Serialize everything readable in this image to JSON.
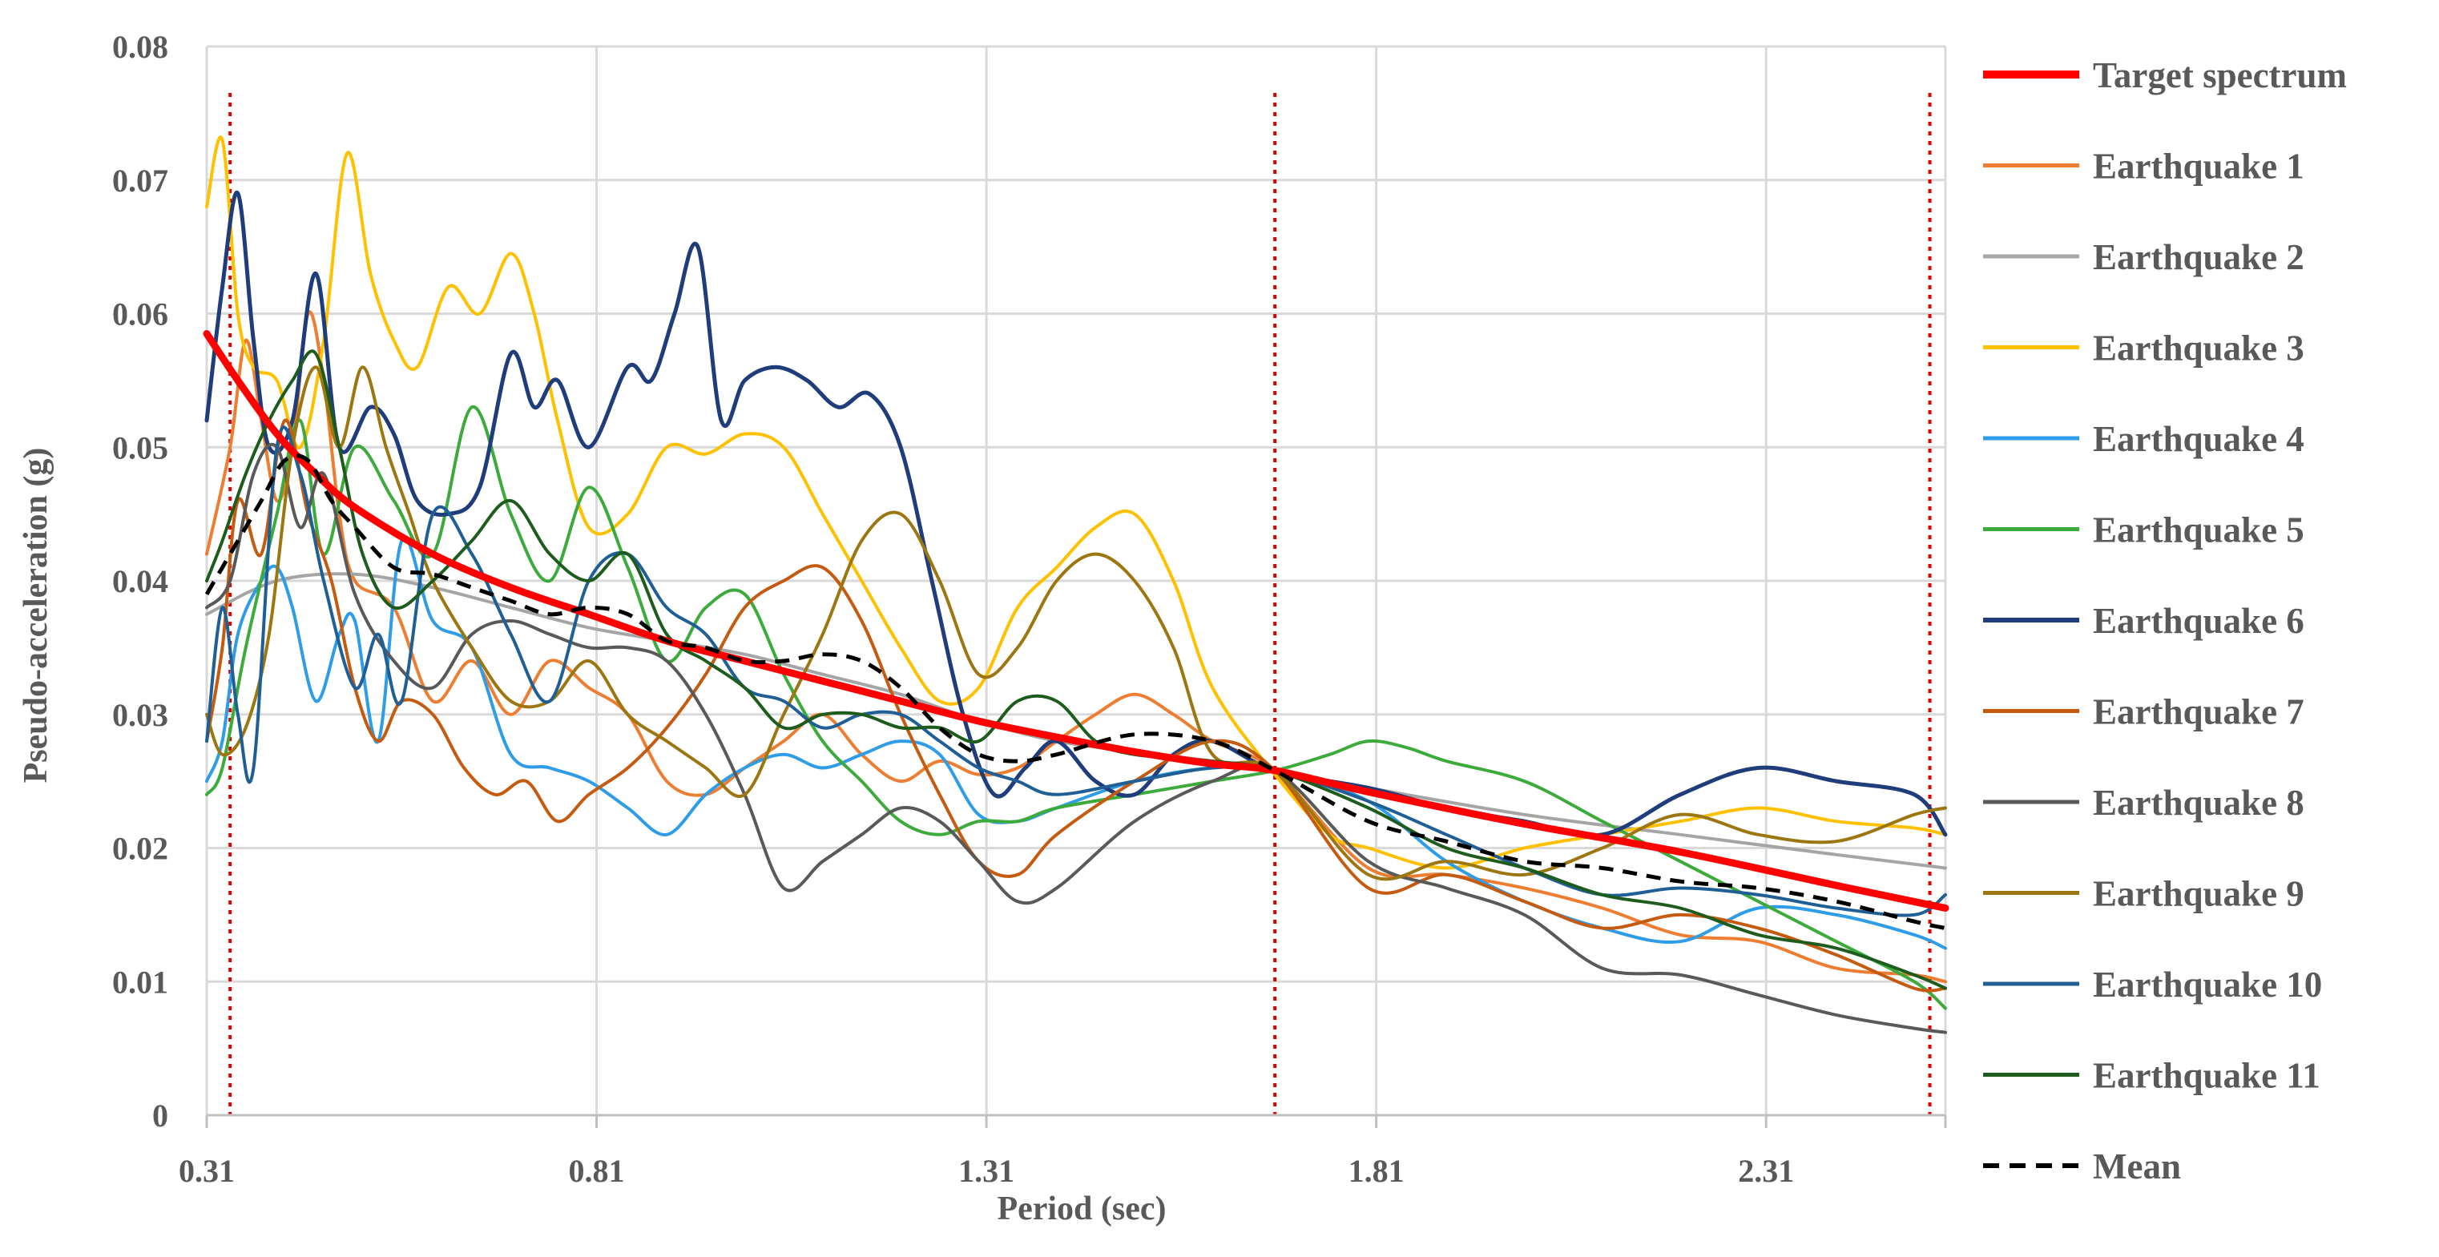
{
  "chart_data": {
    "type": "line",
    "title": "",
    "xlabel": "Period (sec)",
    "ylabel": "Pseudo-acceleration (g)",
    "xlim": [
      0.31,
      2.54
    ],
    "ylim": [
      0,
      0.08
    ],
    "xticks": [
      0.31,
      0.81,
      1.31,
      1.81,
      2.31
    ],
    "xtick_labels": [
      "0.31",
      "0.81",
      "1.31",
      "1.81",
      "2.31"
    ],
    "yticks": [
      0,
      0.01,
      0.02,
      0.03,
      0.04,
      0.05,
      0.06,
      0.07,
      0.08
    ],
    "ytick_labels": [
      "0",
      "0.01",
      "0.02",
      "0.03",
      "0.04",
      "0.05",
      "0.06",
      "0.07",
      "0.08"
    ],
    "grid": true,
    "legend_position": "right",
    "vertical_markers": [
      {
        "x": 0.34,
        "color": "#e00000",
        "style": "dotted"
      },
      {
        "x": 1.68,
        "color": "#e00000",
        "style": "dotted"
      },
      {
        "x": 2.52,
        "color": "#e00000",
        "style": "dotted"
      }
    ],
    "series": [
      {
        "name": "Target spectrum",
        "color": "#ff0000",
        "width": 9,
        "dash": "",
        "x": [
          0.31,
          0.35,
          0.4,
          0.45,
          0.5,
          0.6,
          0.7,
          0.8,
          0.9,
          1.0,
          1.1,
          1.2,
          1.3,
          1.4,
          1.5,
          1.6,
          1.68,
          1.8,
          2.0,
          2.2,
          2.4,
          2.54
        ],
        "y": [
          0.0585,
          0.055,
          0.051,
          0.048,
          0.0455,
          0.042,
          0.0395,
          0.0375,
          0.0355,
          0.034,
          0.0325,
          0.031,
          0.0295,
          0.0283,
          0.0272,
          0.0263,
          0.0258,
          0.0242,
          0.0218,
          0.0197,
          0.0172,
          0.0155
        ]
      },
      {
        "name": "Earthquake 1",
        "color": "#ed7d31",
        "width": 4,
        "dash": "",
        "x": [
          0.31,
          0.34,
          0.36,
          0.38,
          0.4,
          0.42,
          0.44,
          0.46,
          0.48,
          0.5,
          0.55,
          0.6,
          0.65,
          0.7,
          0.75,
          0.8,
          0.85,
          0.9,
          0.95,
          1.0,
          1.05,
          1.1,
          1.15,
          1.2,
          1.25,
          1.3,
          1.35,
          1.4,
          1.45,
          1.5,
          1.55,
          1.6,
          1.68,
          1.8,
          1.9,
          2.0,
          2.1,
          2.2,
          2.3,
          2.4,
          2.5,
          2.54
        ],
        "y": [
          0.042,
          0.05,
          0.058,
          0.052,
          0.046,
          0.05,
          0.06,
          0.055,
          0.045,
          0.04,
          0.038,
          0.031,
          0.034,
          0.03,
          0.034,
          0.032,
          0.03,
          0.025,
          0.024,
          0.026,
          0.028,
          0.03,
          0.027,
          0.025,
          0.0265,
          0.0255,
          0.026,
          0.028,
          0.03,
          0.0315,
          0.03,
          0.028,
          0.0258,
          0.0185,
          0.018,
          0.017,
          0.0155,
          0.0135,
          0.013,
          0.011,
          0.0105,
          0.01
        ]
      },
      {
        "name": "Earthquake 2",
        "color": "#a5a5a5",
        "width": 4,
        "dash": "",
        "x": [
          0.31,
          0.4,
          0.5,
          0.6,
          0.7,
          0.8,
          0.9,
          1.0,
          1.1,
          1.2,
          1.3,
          1.4,
          1.5,
          1.6,
          1.68,
          1.8,
          2.0,
          2.2,
          2.4,
          2.54
        ],
        "y": [
          0.0375,
          0.04,
          0.0405,
          0.0395,
          0.038,
          0.0365,
          0.0355,
          0.0345,
          0.033,
          0.0315,
          0.0295,
          0.028,
          0.0272,
          0.0265,
          0.0258,
          0.0245,
          0.0225,
          0.021,
          0.0195,
          0.0185
        ]
      },
      {
        "name": "Earthquake 3",
        "color": "#ffc000",
        "width": 4,
        "dash": "",
        "x": [
          0.31,
          0.33,
          0.35,
          0.37,
          0.4,
          0.43,
          0.46,
          0.49,
          0.52,
          0.55,
          0.58,
          0.62,
          0.66,
          0.7,
          0.73,
          0.76,
          0.8,
          0.85,
          0.9,
          0.95,
          1.0,
          1.05,
          1.1,
          1.15,
          1.2,
          1.25,
          1.3,
          1.35,
          1.4,
          1.45,
          1.5,
          1.55,
          1.6,
          1.68,
          1.75,
          1.8,
          1.9,
          2.0,
          2.1,
          2.2,
          2.3,
          2.4,
          2.5,
          2.54
        ],
        "y": [
          0.068,
          0.073,
          0.06,
          0.056,
          0.055,
          0.05,
          0.058,
          0.072,
          0.063,
          0.058,
          0.056,
          0.062,
          0.06,
          0.0645,
          0.06,
          0.052,
          0.044,
          0.045,
          0.05,
          0.0495,
          0.051,
          0.05,
          0.045,
          0.04,
          0.035,
          0.031,
          0.032,
          0.038,
          0.041,
          0.044,
          0.045,
          0.04,
          0.032,
          0.0255,
          0.021,
          0.02,
          0.0185,
          0.02,
          0.021,
          0.022,
          0.023,
          0.022,
          0.0215,
          0.021
        ]
      },
      {
        "name": "Earthquake 4",
        "color": "#2e9ce6",
        "width": 4,
        "dash": "",
        "x": [
          0.31,
          0.33,
          0.35,
          0.38,
          0.4,
          0.42,
          0.45,
          0.48,
          0.5,
          0.53,
          0.56,
          0.6,
          0.65,
          0.7,
          0.75,
          0.8,
          0.85,
          0.9,
          0.95,
          1.0,
          1.05,
          1.1,
          1.15,
          1.2,
          1.25,
          1.3,
          1.35,
          1.4,
          1.5,
          1.6,
          1.68,
          1.8,
          1.9,
          2.0,
          2.1,
          2.2,
          2.3,
          2.4,
          2.5,
          2.54
        ],
        "y": [
          0.025,
          0.028,
          0.036,
          0.04,
          0.041,
          0.038,
          0.031,
          0.036,
          0.037,
          0.028,
          0.043,
          0.037,
          0.035,
          0.027,
          0.026,
          0.025,
          0.023,
          0.021,
          0.024,
          0.026,
          0.027,
          0.026,
          0.027,
          0.028,
          0.027,
          0.0225,
          0.022,
          0.023,
          0.025,
          0.026,
          0.0258,
          0.0235,
          0.019,
          0.016,
          0.014,
          0.013,
          0.0155,
          0.015,
          0.0135,
          0.0125
        ]
      },
      {
        "name": "Earthquake 5",
        "color": "#3cab3c",
        "width": 4,
        "dash": "",
        "x": [
          0.31,
          0.33,
          0.36,
          0.4,
          0.43,
          0.46,
          0.5,
          0.55,
          0.6,
          0.65,
          0.7,
          0.75,
          0.8,
          0.85,
          0.9,
          0.95,
          1.0,
          1.05,
          1.1,
          1.15,
          1.2,
          1.25,
          1.3,
          1.35,
          1.4,
          1.5,
          1.6,
          1.68,
          1.75,
          1.8,
          1.85,
          1.9,
          2.0,
          2.1,
          2.2,
          2.3,
          2.4,
          2.5,
          2.54
        ],
        "y": [
          0.024,
          0.026,
          0.035,
          0.045,
          0.052,
          0.042,
          0.05,
          0.046,
          0.042,
          0.053,
          0.045,
          0.04,
          0.047,
          0.041,
          0.034,
          0.038,
          0.039,
          0.033,
          0.028,
          0.025,
          0.022,
          0.021,
          0.022,
          0.022,
          0.023,
          0.024,
          0.025,
          0.0258,
          0.027,
          0.028,
          0.0275,
          0.0265,
          0.025,
          0.022,
          0.019,
          0.016,
          0.013,
          0.01,
          0.008
        ]
      },
      {
        "name": "Earthquake 6",
        "color": "#1f3d7a",
        "width": 5,
        "dash": "",
        "x": [
          0.31,
          0.33,
          0.35,
          0.37,
          0.39,
          0.42,
          0.45,
          0.48,
          0.52,
          0.55,
          0.58,
          0.62,
          0.66,
          0.7,
          0.73,
          0.76,
          0.8,
          0.85,
          0.88,
          0.91,
          0.94,
          0.97,
          1.0,
          1.04,
          1.08,
          1.12,
          1.16,
          1.2,
          1.24,
          1.28,
          1.32,
          1.36,
          1.4,
          1.45,
          1.5,
          1.55,
          1.6,
          1.68,
          1.8,
          1.9,
          2.0,
          2.1,
          2.2,
          2.3,
          2.4,
          2.5,
          2.54
        ],
        "y": [
          0.052,
          0.062,
          0.069,
          0.058,
          0.05,
          0.052,
          0.063,
          0.05,
          0.053,
          0.051,
          0.046,
          0.045,
          0.047,
          0.057,
          0.053,
          0.055,
          0.05,
          0.056,
          0.055,
          0.06,
          0.065,
          0.052,
          0.055,
          0.056,
          0.055,
          0.053,
          0.054,
          0.05,
          0.04,
          0.03,
          0.024,
          0.026,
          0.028,
          0.025,
          0.024,
          0.027,
          0.028,
          0.0258,
          0.0245,
          0.023,
          0.022,
          0.021,
          0.024,
          0.026,
          0.025,
          0.024,
          0.021
        ]
      },
      {
        "name": "Earthquake 7",
        "color": "#c55a11",
        "width": 4,
        "dash": "",
        "x": [
          0.31,
          0.33,
          0.35,
          0.38,
          0.41,
          0.44,
          0.47,
          0.5,
          0.53,
          0.56,
          0.6,
          0.64,
          0.68,
          0.72,
          0.76,
          0.8,
          0.85,
          0.9,
          0.95,
          1.0,
          1.05,
          1.1,
          1.15,
          1.2,
          1.25,
          1.3,
          1.35,
          1.4,
          1.5,
          1.6,
          1.68,
          1.8,
          1.9,
          2.0,
          2.1,
          2.2,
          2.3,
          2.4,
          2.5,
          2.54
        ],
        "y": [
          0.028,
          0.035,
          0.046,
          0.042,
          0.052,
          0.045,
          0.04,
          0.032,
          0.028,
          0.031,
          0.03,
          0.026,
          0.024,
          0.025,
          0.022,
          0.024,
          0.026,
          0.029,
          0.033,
          0.038,
          0.04,
          0.041,
          0.037,
          0.03,
          0.024,
          0.019,
          0.018,
          0.021,
          0.025,
          0.028,
          0.0258,
          0.017,
          0.018,
          0.016,
          0.014,
          0.015,
          0.014,
          0.012,
          0.0095,
          0.0095
        ]
      },
      {
        "name": "Earthquake 8",
        "color": "#595959",
        "width": 4,
        "dash": "",
        "x": [
          0.31,
          0.34,
          0.37,
          0.4,
          0.43,
          0.46,
          0.5,
          0.55,
          0.6,
          0.65,
          0.7,
          0.75,
          0.8,
          0.85,
          0.9,
          0.95,
          1.0,
          1.05,
          1.1,
          1.15,
          1.2,
          1.25,
          1.3,
          1.35,
          1.4,
          1.5,
          1.6,
          1.68,
          1.8,
          1.9,
          2.0,
          2.1,
          2.2,
          2.3,
          2.4,
          2.5,
          2.54
        ],
        "y": [
          0.038,
          0.04,
          0.048,
          0.05,
          0.044,
          0.048,
          0.039,
          0.034,
          0.032,
          0.036,
          0.037,
          0.036,
          0.035,
          0.035,
          0.034,
          0.03,
          0.024,
          0.017,
          0.019,
          0.021,
          0.023,
          0.022,
          0.019,
          0.016,
          0.017,
          0.022,
          0.025,
          0.0258,
          0.019,
          0.017,
          0.015,
          0.011,
          0.0105,
          0.009,
          0.0075,
          0.0065,
          0.0062
        ]
      },
      {
        "name": "Earthquake 9",
        "color": "#9c7610",
        "width": 4,
        "dash": "",
        "x": [
          0.31,
          0.33,
          0.36,
          0.39,
          0.42,
          0.45,
          0.48,
          0.51,
          0.54,
          0.57,
          0.6,
          0.65,
          0.7,
          0.75,
          0.8,
          0.85,
          0.9,
          0.95,
          1.0,
          1.05,
          1.1,
          1.15,
          1.2,
          1.25,
          1.3,
          1.35,
          1.4,
          1.45,
          1.5,
          1.55,
          1.6,
          1.68,
          1.8,
          1.9,
          2.0,
          2.1,
          2.2,
          2.3,
          2.4,
          2.5,
          2.54
        ],
        "y": [
          0.03,
          0.027,
          0.029,
          0.036,
          0.05,
          0.056,
          0.05,
          0.056,
          0.05,
          0.045,
          0.04,
          0.035,
          0.031,
          0.031,
          0.034,
          0.03,
          0.028,
          0.026,
          0.024,
          0.03,
          0.036,
          0.043,
          0.045,
          0.04,
          0.033,
          0.035,
          0.04,
          0.042,
          0.04,
          0.035,
          0.027,
          0.0258,
          0.018,
          0.019,
          0.018,
          0.02,
          0.0225,
          0.021,
          0.0205,
          0.0225,
          0.023
        ]
      },
      {
        "name": "Earthquake 10",
        "color": "#1f5f96",
        "width": 4,
        "dash": "",
        "x": [
          0.31,
          0.33,
          0.35,
          0.37,
          0.4,
          0.43,
          0.46,
          0.5,
          0.53,
          0.56,
          0.6,
          0.65,
          0.7,
          0.75,
          0.8,
          0.85,
          0.9,
          0.95,
          1.0,
          1.05,
          1.1,
          1.15,
          1.2,
          1.25,
          1.3,
          1.35,
          1.4,
          1.5,
          1.6,
          1.68,
          1.8,
          1.9,
          2.0,
          2.1,
          2.2,
          2.3,
          2.4,
          2.5,
          2.54
        ],
        "y": [
          0.028,
          0.038,
          0.03,
          0.026,
          0.05,
          0.048,
          0.04,
          0.032,
          0.036,
          0.031,
          0.045,
          0.042,
          0.036,
          0.031,
          0.04,
          0.042,
          0.038,
          0.036,
          0.032,
          0.031,
          0.029,
          0.03,
          0.03,
          0.028,
          0.026,
          0.025,
          0.024,
          0.025,
          0.026,
          0.0258,
          0.0235,
          0.021,
          0.0185,
          0.0165,
          0.017,
          0.0165,
          0.0155,
          0.015,
          0.0165
        ]
      },
      {
        "name": "Earthquake 11",
        "color": "#1e5c1e",
        "width": 4,
        "dash": "",
        "x": [
          0.31,
          0.33,
          0.36,
          0.39,
          0.42,
          0.45,
          0.48,
          0.51,
          0.55,
          0.6,
          0.65,
          0.7,
          0.75,
          0.8,
          0.85,
          0.9,
          0.95,
          1.0,
          1.05,
          1.1,
          1.15,
          1.2,
          1.25,
          1.3,
          1.35,
          1.4,
          1.45,
          1.5,
          1.6,
          1.68,
          1.8,
          1.9,
          2.0,
          2.1,
          2.2,
          2.3,
          2.4,
          2.5,
          2.54
        ],
        "y": [
          0.04,
          0.043,
          0.048,
          0.052,
          0.055,
          0.057,
          0.05,
          0.042,
          0.038,
          0.04,
          0.043,
          0.046,
          0.042,
          0.04,
          0.042,
          0.036,
          0.034,
          0.032,
          0.029,
          0.03,
          0.03,
          0.029,
          0.029,
          0.028,
          0.031,
          0.031,
          0.028,
          0.027,
          0.0265,
          0.0258,
          0.023,
          0.02,
          0.0185,
          0.0165,
          0.0155,
          0.0135,
          0.0125,
          0.0105,
          0.0095
        ]
      },
      {
        "name": "Mean",
        "color": "#000000",
        "width": 5,
        "dash": "18,12",
        "x": [
          0.31,
          0.33,
          0.35,
          0.38,
          0.41,
          0.44,
          0.47,
          0.5,
          0.55,
          0.6,
          0.65,
          0.7,
          0.75,
          0.8,
          0.85,
          0.9,
          0.95,
          1.0,
          1.05,
          1.1,
          1.15,
          1.2,
          1.25,
          1.3,
          1.35,
          1.4,
          1.5,
          1.6,
          1.68,
          1.8,
          1.9,
          2.0,
          2.1,
          2.2,
          2.3,
          2.4,
          2.5,
          2.54
        ],
        "y": [
          0.039,
          0.041,
          0.043,
          0.046,
          0.049,
          0.049,
          0.046,
          0.044,
          0.041,
          0.0405,
          0.0395,
          0.0385,
          0.0375,
          0.038,
          0.0375,
          0.0355,
          0.035,
          0.034,
          0.034,
          0.0345,
          0.034,
          0.032,
          0.029,
          0.027,
          0.0265,
          0.027,
          0.0285,
          0.028,
          0.0258,
          0.022,
          0.0205,
          0.019,
          0.0185,
          0.0175,
          0.017,
          0.016,
          0.0145,
          0.014
        ]
      }
    ]
  }
}
